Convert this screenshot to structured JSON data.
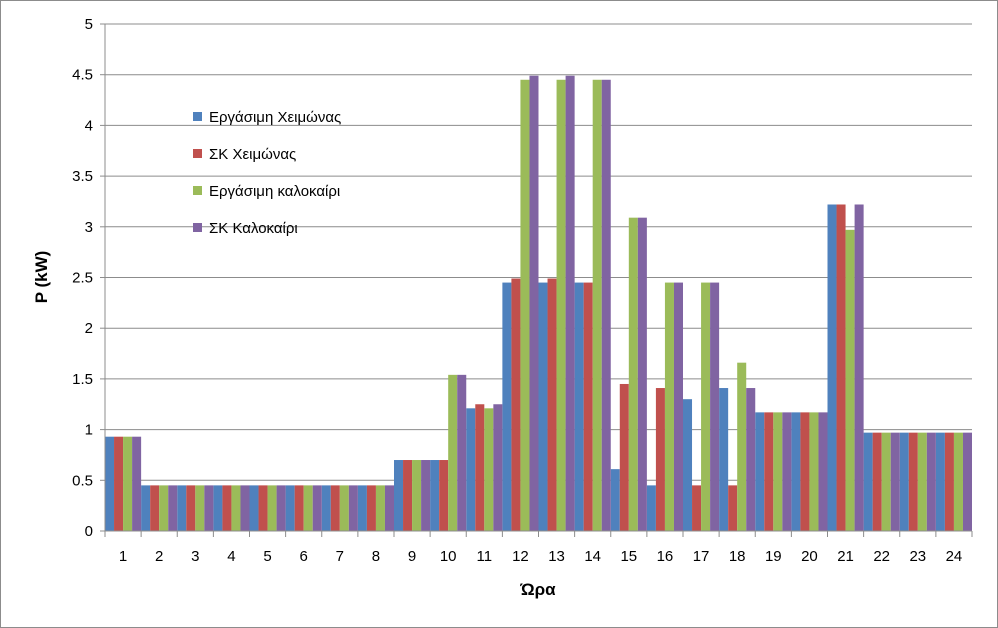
{
  "chart_data": {
    "type": "bar",
    "title": "",
    "xlabel": "Ώρα",
    "ylabel": "P (kW)",
    "ylim": [
      0,
      5
    ],
    "yticks": [
      "0",
      "0.5",
      "1",
      "1.5",
      "2",
      "2.5",
      "3",
      "3.5",
      "4",
      "4.5",
      "5"
    ],
    "grid": true,
    "legend_position": "left",
    "categories": [
      "1",
      "2",
      "3",
      "4",
      "5",
      "6",
      "7",
      "8",
      "9",
      "10",
      "11",
      "12",
      "13",
      "14",
      "15",
      "16",
      "17",
      "18",
      "19",
      "20",
      "21",
      "22",
      "23",
      "24"
    ],
    "series": [
      {
        "name": "Εργάσιμη Χειμώνας",
        "color": "#4f81bd",
        "values": [
          0.93,
          0.45,
          0.45,
          0.45,
          0.45,
          0.45,
          0.45,
          0.45,
          0.7,
          0.7,
          1.21,
          2.45,
          2.45,
          2.45,
          0.61,
          0.45,
          1.3,
          1.41,
          1.17,
          1.17,
          3.22,
          0.97,
          0.97,
          0.97
        ]
      },
      {
        "name": "ΣΚ Χειμώνας",
        "color": "#c0504d",
        "values": [
          0.93,
          0.45,
          0.45,
          0.45,
          0.45,
          0.45,
          0.45,
          0.45,
          0.7,
          0.7,
          1.25,
          2.49,
          2.49,
          2.45,
          1.45,
          1.41,
          0.45,
          0.45,
          1.17,
          1.17,
          3.22,
          0.97,
          0.97,
          0.97
        ]
      },
      {
        "name": "Εργάσιμη καλοκαίρι",
        "color": "#9bbb59",
        "values": [
          0.93,
          0.45,
          0.45,
          0.45,
          0.45,
          0.45,
          0.45,
          0.45,
          0.7,
          1.54,
          1.21,
          4.45,
          4.45,
          4.45,
          3.09,
          2.45,
          2.45,
          1.66,
          1.17,
          1.17,
          2.97,
          0.97,
          0.97,
          0.97
        ]
      },
      {
        "name": "ΣΚ Καλοκαίρι",
        "color": "#8064a2",
        "values": [
          0.93,
          0.45,
          0.45,
          0.45,
          0.45,
          0.45,
          0.45,
          0.45,
          0.7,
          1.54,
          1.25,
          4.49,
          4.49,
          4.45,
          3.09,
          2.45,
          2.45,
          1.41,
          1.17,
          1.17,
          3.22,
          0.97,
          0.97,
          0.97
        ]
      }
    ]
  }
}
